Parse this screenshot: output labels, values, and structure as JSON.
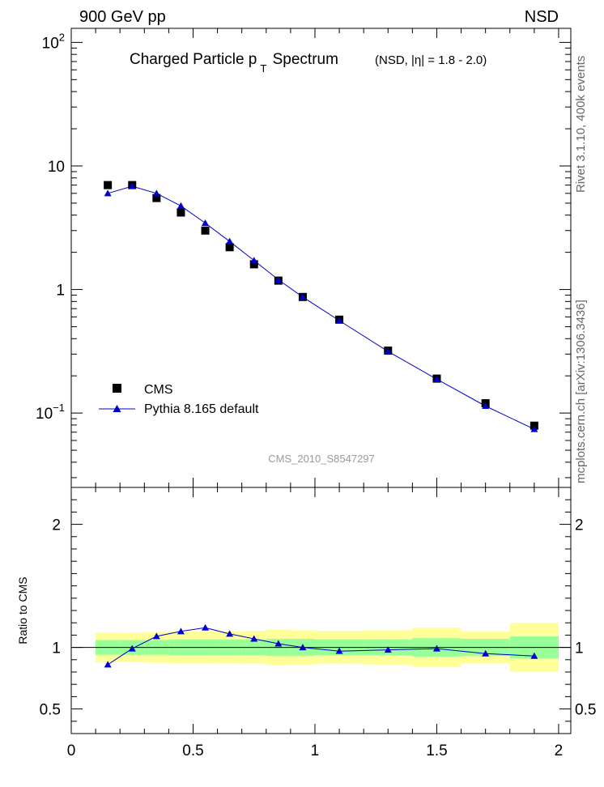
{
  "header": {
    "left": "900 GeV pp",
    "right": "NSD",
    "side_top": "Rivet 3.1.10,  400k events",
    "side_bottom": "mcplots.cern.ch [arXiv:1306.3436]"
  },
  "colors": {
    "data": "#000000",
    "mc": "#0000cc",
    "band_inner": "#99ff99",
    "band_outer": "#ffff99"
  },
  "chart_data": [
    {
      "type": "scatter",
      "panel": "main",
      "title_main": "Charged Particle p",
      "title_sub": "T",
      "title_after": " Spectrum",
      "title_extra": "(NSD, |η| = 1.8 - 2.0)",
      "watermark": "CMS_2010_S8547297",
      "yscale": "log",
      "xlim": [
        0,
        2.05
      ],
      "ylim": [
        0.025,
        130
      ],
      "ytick_labels": [
        {
          "value": 100,
          "base": "10",
          "exp": "2"
        },
        {
          "value": 10,
          "base": "10",
          "exp": ""
        },
        {
          "value": 1,
          "base": "1",
          "exp": ""
        },
        {
          "value": 0.1,
          "base": "10",
          "exp": "−1"
        }
      ],
      "legend": [
        "CMS",
        "Pythia 8.165 default"
      ],
      "series": [
        {
          "name": "CMS",
          "x": [
            0.15,
            0.25,
            0.35,
            0.45,
            0.55,
            0.65,
            0.75,
            0.85,
            0.95,
            1.1,
            1.3,
            1.5,
            1.7,
            1.9
          ],
          "y": [
            7.0,
            7.0,
            5.5,
            4.2,
            3.0,
            2.2,
            1.6,
            1.18,
            0.87,
            0.57,
            0.32,
            0.19,
            0.12,
            0.079
          ]
        },
        {
          "name": "Pythia 8.165 default",
          "x": [
            0.15,
            0.25,
            0.35,
            0.45,
            0.55,
            0.65,
            0.75,
            0.85,
            0.95,
            1.1,
            1.3,
            1.5,
            1.7,
            1.9
          ],
          "y": [
            6.0,
            6.85,
            6.0,
            4.75,
            3.45,
            2.45,
            1.72,
            1.2,
            0.87,
            0.56,
            0.315,
            0.188,
            0.114,
            0.074
          ]
        }
      ]
    },
    {
      "type": "line",
      "panel": "ratio",
      "ylabel": "Ratio to CMS",
      "xlim": [
        0,
        2.05
      ],
      "ylim": [
        0.3,
        2.3
      ],
      "xtick_labels": [
        "0",
        "0.5",
        "1",
        "1.5",
        "2"
      ],
      "xtick_values": [
        0,
        0.5,
        1,
        1.5,
        2
      ],
      "ytick_labels": [
        "0.5",
        "1",
        "2"
      ],
      "ytick_values": [
        0.5,
        1,
        2
      ],
      "bins": [
        [
          0.1,
          0.2
        ],
        [
          0.2,
          0.3
        ],
        [
          0.3,
          0.4
        ],
        [
          0.4,
          0.5
        ],
        [
          0.5,
          0.6
        ],
        [
          0.6,
          0.7
        ],
        [
          0.7,
          0.8
        ],
        [
          0.8,
          0.9
        ],
        [
          0.9,
          1.0
        ],
        [
          1.0,
          1.2
        ],
        [
          1.2,
          1.4
        ],
        [
          1.4,
          1.6
        ],
        [
          1.6,
          1.8
        ],
        [
          1.8,
          2.0
        ]
      ],
      "band_inner_half": [
        0.06,
        0.06,
        0.06,
        0.065,
        0.065,
        0.065,
        0.065,
        0.07,
        0.07,
        0.065,
        0.065,
        0.075,
        0.07,
        0.09
      ],
      "band_outer_half": [
        0.12,
        0.12,
        0.125,
        0.13,
        0.13,
        0.13,
        0.135,
        0.145,
        0.14,
        0.135,
        0.14,
        0.16,
        0.13,
        0.2
      ],
      "series": [
        {
          "name": "Pythia 8.165 default",
          "x": [
            0.15,
            0.25,
            0.35,
            0.45,
            0.55,
            0.65,
            0.75,
            0.85,
            0.95,
            1.1,
            1.3,
            1.5,
            1.7,
            1.9
          ],
          "y": [
            0.86,
            0.99,
            1.09,
            1.13,
            1.16,
            1.11,
            1.07,
            1.03,
            1.0,
            0.97,
            0.98,
            0.99,
            0.95,
            0.93
          ]
        }
      ]
    }
  ]
}
